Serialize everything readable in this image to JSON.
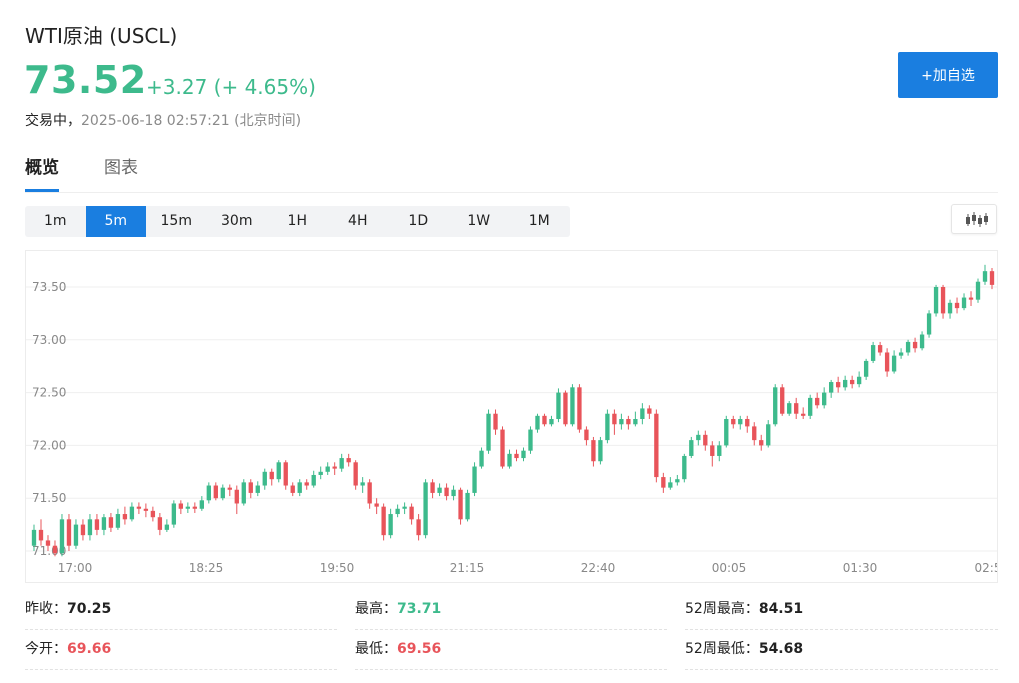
{
  "header": {
    "title": "WTI原油 (USCL)",
    "price": "73.52",
    "change": "+3.27 (+ 4.65%)",
    "status_label": "交易中，",
    "timestamp": "2025-06-18 02:57:21 (北京时间)",
    "add_button": "+加自选"
  },
  "tabs": [
    {
      "label": "概览",
      "active": true
    },
    {
      "label": "图表",
      "active": false
    }
  ],
  "intervals": [
    "1m",
    "5m",
    "15m",
    "30m",
    "1H",
    "4H",
    "1D",
    "1W",
    "1M"
  ],
  "selected_interval": "5m",
  "colors": {
    "up": "#3dba8c",
    "down": "#e8545a",
    "accent": "#1a7ee0"
  },
  "chart_data": {
    "type": "candlestick",
    "y_ticks": [
      "73.50",
      "73.00",
      "72.50",
      "72.00",
      "71.50",
      "71.00"
    ],
    "x_ticks": [
      "17:00",
      "18:25",
      "19:50",
      "21:15",
      "22:40",
      "00:05",
      "01:30",
      "02:5"
    ],
    "ylim": [
      70.95,
      73.75
    ],
    "grid": true,
    "candles": [
      [
        71.05,
        71.2,
        71.0,
        71.25
      ],
      [
        71.2,
        71.1,
        71.05,
        71.3
      ],
      [
        71.1,
        71.05,
        71.0,
        71.15
      ],
      [
        71.05,
        70.98,
        70.95,
        71.1
      ],
      [
        70.98,
        71.3,
        70.95,
        71.35
      ],
      [
        71.3,
        71.05,
        71.0,
        71.35
      ],
      [
        71.05,
        71.25,
        71.02,
        71.3
      ],
      [
        71.25,
        71.15,
        71.1,
        71.3
      ],
      [
        71.15,
        71.3,
        71.1,
        71.35
      ],
      [
        71.3,
        71.2,
        71.15,
        71.35
      ],
      [
        71.2,
        71.32,
        71.15,
        71.35
      ],
      [
        71.32,
        71.22,
        71.18,
        71.36
      ],
      [
        71.22,
        71.35,
        71.2,
        71.4
      ],
      [
        71.35,
        71.3,
        71.25,
        71.42
      ],
      [
        71.3,
        71.42,
        71.28,
        71.46
      ],
      [
        71.42,
        71.4,
        71.35,
        71.46
      ],
      [
        71.4,
        71.38,
        71.32,
        71.45
      ],
      [
        71.38,
        71.32,
        71.28,
        71.42
      ],
      [
        71.32,
        71.2,
        71.15,
        71.36
      ],
      [
        71.2,
        71.25,
        71.18,
        71.3
      ],
      [
        71.25,
        71.45,
        71.22,
        71.48
      ],
      [
        71.45,
        71.4,
        71.35,
        71.48
      ],
      [
        71.4,
        71.42,
        71.36,
        71.46
      ],
      [
        71.42,
        71.4,
        71.36,
        71.46
      ],
      [
        71.4,
        71.48,
        71.38,
        71.52
      ],
      [
        71.48,
        71.62,
        71.45,
        71.65
      ],
      [
        71.62,
        71.5,
        71.48,
        71.65
      ],
      [
        71.5,
        71.6,
        71.48,
        71.63
      ],
      [
        71.6,
        71.58,
        71.52,
        71.63
      ],
      [
        71.58,
        71.45,
        71.35,
        71.62
      ],
      [
        71.45,
        71.65,
        71.43,
        71.68
      ],
      [
        71.65,
        71.55,
        71.5,
        71.68
      ],
      [
        71.55,
        71.62,
        71.52,
        71.66
      ],
      [
        71.62,
        71.75,
        71.58,
        71.78
      ],
      [
        71.75,
        71.68,
        71.62,
        71.78
      ],
      [
        71.68,
        71.84,
        71.65,
        71.86
      ],
      [
        71.84,
        71.62,
        71.58,
        71.86
      ],
      [
        71.62,
        71.55,
        71.52,
        71.65
      ],
      [
        71.55,
        71.65,
        71.52,
        71.68
      ],
      [
        71.65,
        71.62,
        71.58,
        71.68
      ],
      [
        71.62,
        71.72,
        71.6,
        71.76
      ],
      [
        71.72,
        71.75,
        71.68,
        71.8
      ],
      [
        71.75,
        71.8,
        71.72,
        71.84
      ],
      [
        71.8,
        71.78,
        71.72,
        71.84
      ],
      [
        71.78,
        71.88,
        71.75,
        71.92
      ],
      [
        71.88,
        71.84,
        71.8,
        71.92
      ],
      [
        71.84,
        71.62,
        71.58,
        71.86
      ],
      [
        71.62,
        71.65,
        71.55,
        71.7
      ],
      [
        71.65,
        71.45,
        71.4,
        71.68
      ],
      [
        71.45,
        71.42,
        71.35,
        71.5
      ],
      [
        71.42,
        71.15,
        71.1,
        71.45
      ],
      [
        71.15,
        71.35,
        71.12,
        71.4
      ],
      [
        71.35,
        71.4,
        71.32,
        71.44
      ],
      [
        71.4,
        71.42,
        71.35,
        71.46
      ],
      [
        71.42,
        71.3,
        71.25,
        71.45
      ],
      [
        71.3,
        71.15,
        71.1,
        71.35
      ],
      [
        71.15,
        71.65,
        71.12,
        71.68
      ],
      [
        71.65,
        71.55,
        71.5,
        71.68
      ],
      [
        71.55,
        71.6,
        71.52,
        71.64
      ],
      [
        71.6,
        71.52,
        71.48,
        71.64
      ],
      [
        71.52,
        71.58,
        71.48,
        71.62
      ],
      [
        71.58,
        71.3,
        71.25,
        71.6
      ],
      [
        71.3,
        71.55,
        71.28,
        71.58
      ],
      [
        71.55,
        71.8,
        71.52,
        71.84
      ],
      [
        71.8,
        71.95,
        71.78,
        71.98
      ],
      [
        71.95,
        72.3,
        71.92,
        72.34
      ],
      [
        72.3,
        72.15,
        72.1,
        72.34
      ],
      [
        72.15,
        71.8,
        71.78,
        72.18
      ],
      [
        71.8,
        71.92,
        71.78,
        71.96
      ],
      [
        71.92,
        71.88,
        71.85,
        71.96
      ],
      [
        71.88,
        71.95,
        71.85,
        71.98
      ],
      [
        71.95,
        72.15,
        71.92,
        72.18
      ],
      [
        72.15,
        72.28,
        72.12,
        72.3
      ],
      [
        72.28,
        72.2,
        72.18,
        72.3
      ],
      [
        72.2,
        72.25,
        72.18,
        72.28
      ],
      [
        72.25,
        72.5,
        72.22,
        72.54
      ],
      [
        72.5,
        72.2,
        72.18,
        72.52
      ],
      [
        72.2,
        72.55,
        72.18,
        72.58
      ],
      [
        72.55,
        72.15,
        72.12,
        72.58
      ],
      [
        72.15,
        72.05,
        72.0,
        72.18
      ],
      [
        72.05,
        71.85,
        71.8,
        72.08
      ],
      [
        71.85,
        72.05,
        71.82,
        72.08
      ],
      [
        72.05,
        72.3,
        72.02,
        72.34
      ],
      [
        72.3,
        72.2,
        72.1,
        72.34
      ],
      [
        72.2,
        72.25,
        72.15,
        72.3
      ],
      [
        72.25,
        72.2,
        72.15,
        72.28
      ],
      [
        72.2,
        72.25,
        72.18,
        72.32
      ],
      [
        72.25,
        72.35,
        72.2,
        72.4
      ],
      [
        72.35,
        72.3,
        72.25,
        72.38
      ],
      [
        72.3,
        71.7,
        71.65,
        72.34
      ],
      [
        71.7,
        71.6,
        71.55,
        71.74
      ],
      [
        71.6,
        71.65,
        71.58,
        71.7
      ],
      [
        71.65,
        71.68,
        71.62,
        71.72
      ],
      [
        71.68,
        71.9,
        71.65,
        71.92
      ],
      [
        71.9,
        72.05,
        71.88,
        72.08
      ],
      [
        72.05,
        72.1,
        72.0,
        72.14
      ],
      [
        72.1,
        72.0,
        71.95,
        72.14
      ],
      [
        72.0,
        71.9,
        71.8,
        72.04
      ],
      [
        71.9,
        72.0,
        71.85,
        72.04
      ],
      [
        72.0,
        72.25,
        71.98,
        72.28
      ],
      [
        72.25,
        72.2,
        72.16,
        72.28
      ],
      [
        72.2,
        72.25,
        72.15,
        72.28
      ],
      [
        72.25,
        72.18,
        72.12,
        72.28
      ],
      [
        72.18,
        72.05,
        72.0,
        72.22
      ],
      [
        72.05,
        72.0,
        71.95,
        72.1
      ],
      [
        72.0,
        72.2,
        71.98,
        72.24
      ],
      [
        72.2,
        72.55,
        72.18,
        72.58
      ],
      [
        72.55,
        72.3,
        72.28,
        72.58
      ],
      [
        72.3,
        72.4,
        72.28,
        72.42
      ],
      [
        72.4,
        72.3,
        72.25,
        72.45
      ],
      [
        72.3,
        72.28,
        72.25,
        72.36
      ],
      [
        72.28,
        72.45,
        72.25,
        72.48
      ],
      [
        72.45,
        72.38,
        72.35,
        72.5
      ],
      [
        72.38,
        72.5,
        72.35,
        72.55
      ],
      [
        72.5,
        72.6,
        72.45,
        72.62
      ],
      [
        72.6,
        72.55,
        72.5,
        72.65
      ],
      [
        72.55,
        72.62,
        72.52,
        72.66
      ],
      [
        72.62,
        72.58,
        72.54,
        72.66
      ],
      [
        72.58,
        72.65,
        72.55,
        72.7
      ],
      [
        72.65,
        72.8,
        72.62,
        72.82
      ],
      [
        72.8,
        72.95,
        72.78,
        72.98
      ],
      [
        72.95,
        72.88,
        72.85,
        72.98
      ],
      [
        72.88,
        72.7,
        72.65,
        72.92
      ],
      [
        72.7,
        72.85,
        72.68,
        72.9
      ],
      [
        72.85,
        72.88,
        72.82,
        72.92
      ],
      [
        72.88,
        72.98,
        72.85,
        73.0
      ],
      [
        72.98,
        72.92,
        72.88,
        73.02
      ],
      [
        72.92,
        73.05,
        72.9,
        73.08
      ],
      [
        73.05,
        73.25,
        73.02,
        73.28
      ],
      [
        73.25,
        73.5,
        73.22,
        73.52
      ],
      [
        73.5,
        73.25,
        73.2,
        73.52
      ],
      [
        73.25,
        73.35,
        73.2,
        73.38
      ],
      [
        73.35,
        73.3,
        73.25,
        73.4
      ],
      [
        73.3,
        73.4,
        73.28,
        73.44
      ],
      [
        73.4,
        73.38,
        73.32,
        73.46
      ],
      [
        73.38,
        73.55,
        73.35,
        73.58
      ],
      [
        73.55,
        73.65,
        73.52,
        73.71
      ],
      [
        73.65,
        73.52,
        73.48,
        73.68
      ]
    ]
  },
  "stats": [
    {
      "label": "昨收：",
      "value": "70.25",
      "tone": "neutral"
    },
    {
      "label": "最高：",
      "value": "73.71",
      "tone": "up"
    },
    {
      "label": "52周最高：",
      "value": "84.51",
      "tone": "neutral"
    },
    {
      "label": "今开：",
      "value": "69.66",
      "tone": "down"
    },
    {
      "label": "最低：",
      "value": "69.56",
      "tone": "down"
    },
    {
      "label": "52周最低：",
      "value": "54.68",
      "tone": "neutral"
    }
  ]
}
